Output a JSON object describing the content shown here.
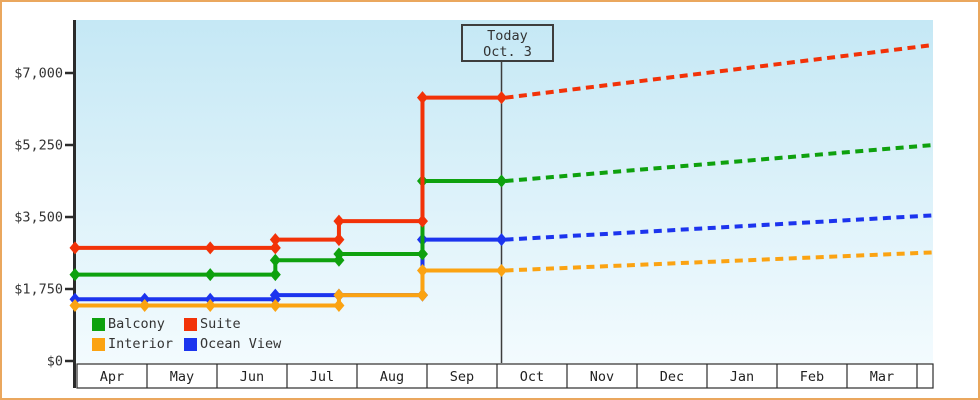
{
  "page": {
    "background": "#ffffff",
    "border_color": "#eaa75e"
  },
  "chart_data": {
    "type": "line",
    "title": "",
    "x_axis": {
      "months": [
        "Apr",
        "May",
        "Jun",
        "Jul",
        "Aug",
        "Sep",
        "Oct",
        "Nov",
        "Dec",
        "Jan",
        "Feb",
        "Mar"
      ]
    },
    "y_axis": {
      "ticks": [
        {
          "value": 0,
          "label": "$0"
        },
        {
          "value": 1750,
          "label": "$1,750"
        },
        {
          "value": 3500,
          "label": "$3,500"
        },
        {
          "value": 5250,
          "label": "$5,250"
        },
        {
          "value": 7000,
          "label": "$7,000"
        }
      ],
      "max": 8300
    },
    "today": {
      "line1": "Today",
      "line2": "Oct. 3",
      "month": "Oct",
      "day": 3
    },
    "plot_background": {
      "top": "#c5e8f5",
      "bottom": "#f3fbfe"
    },
    "axis_color": "#2b2b2b",
    "text_color": "#333333",
    "series": [
      {
        "name": "Ocean View",
        "color": "#1c34ee",
        "points": [
          {
            "m": "Apr",
            "d": 1,
            "v": 1500
          },
          {
            "m": "Apr",
            "d": 30,
            "v": 1500
          },
          {
            "m": "May",
            "d": 29,
            "v": 1500
          },
          {
            "m": "Jun",
            "d": 26,
            "v": 1500
          },
          {
            "m": "Jun",
            "d": 26,
            "v": 1600
          },
          {
            "m": "Jul",
            "d": 24,
            "v": 1600
          },
          {
            "m": "Aug",
            "d": 30,
            "v": 1600
          },
          {
            "m": "Aug",
            "d": 30,
            "v": 2950
          },
          {
            "m": "Oct",
            "d": 3,
            "v": 2950
          }
        ],
        "today_value": 2950,
        "projection_end_value": 3540
      },
      {
        "name": "Interior",
        "color": "#fba312",
        "points": [
          {
            "m": "Apr",
            "d": 1,
            "v": 1350
          },
          {
            "m": "Apr",
            "d": 30,
            "v": 1350
          },
          {
            "m": "May",
            "d": 29,
            "v": 1350
          },
          {
            "m": "Jun",
            "d": 26,
            "v": 1350
          },
          {
            "m": "Jul",
            "d": 24,
            "v": 1350
          },
          {
            "m": "Jul",
            "d": 24,
            "v": 1600
          },
          {
            "m": "Aug",
            "d": 30,
            "v": 1600
          },
          {
            "m": "Aug",
            "d": 30,
            "v": 2200
          },
          {
            "m": "Oct",
            "d": 3,
            "v": 2200
          }
        ],
        "today_value": 2200,
        "projection_end_value": 2640
      },
      {
        "name": "Balcony",
        "color": "#0ea10e",
        "points": [
          {
            "m": "Apr",
            "d": 1,
            "v": 2100
          },
          {
            "m": "May",
            "d": 29,
            "v": 2100
          },
          {
            "m": "Jun",
            "d": 26,
            "v": 2100
          },
          {
            "m": "Jun",
            "d": 26,
            "v": 2450
          },
          {
            "m": "Jul",
            "d": 24,
            "v": 2450
          },
          {
            "m": "Jul",
            "d": 24,
            "v": 2600
          },
          {
            "m": "Aug",
            "d": 30,
            "v": 2600
          },
          {
            "m": "Aug",
            "d": 30,
            "v": 4375
          },
          {
            "m": "Oct",
            "d": 3,
            "v": 4375
          }
        ],
        "today_value": 4375,
        "projection_end_value": 5250
      },
      {
        "name": "Suite",
        "color": "#f23208",
        "points": [
          {
            "m": "Apr",
            "d": 1,
            "v": 2750
          },
          {
            "m": "May",
            "d": 29,
            "v": 2750
          },
          {
            "m": "Jun",
            "d": 26,
            "v": 2750
          },
          {
            "m": "Jun",
            "d": 26,
            "v": 2950
          },
          {
            "m": "Jul",
            "d": 24,
            "v": 2950
          },
          {
            "m": "Jul",
            "d": 24,
            "v": 3400
          },
          {
            "m": "Aug",
            "d": 30,
            "v": 3400
          },
          {
            "m": "Aug",
            "d": 30,
            "v": 6400
          },
          {
            "m": "Oct",
            "d": 3,
            "v": 6400
          }
        ],
        "today_value": 6400,
        "projection_end_value": 7680
      }
    ],
    "legend": [
      {
        "label": "Balcony",
        "color": "#0ea10e"
      },
      {
        "label": "Suite",
        "color": "#f23208"
      },
      {
        "label": "Interior",
        "color": "#fba312"
      },
      {
        "label": "Ocean View",
        "color": "#1c34ee"
      }
    ]
  }
}
